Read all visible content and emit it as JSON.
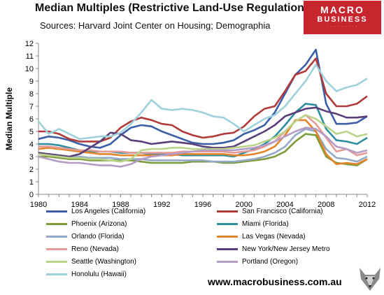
{
  "header": {
    "title": "Median Multiples (Restrictive Land-Use Regulation)",
    "subtitle": "Sources: Harvard Joint Center on Housing; Demographia"
  },
  "logo": {
    "line1": "MACRO",
    "line2": "BUSINESS",
    "line3": "· · · · · · · · ·"
  },
  "footer": {
    "url": "www.macrobusiness.com.au"
  },
  "chart_data": {
    "type": "line",
    "title": "Median Multiples (Restrictive Land-Use Regulation)",
    "subtitle": "Sources: Harvard Joint Center on Housing; Demographia",
    "xlabel": "",
    "ylabel": "Median Multiple",
    "xlim": [
      1980,
      2012
    ],
    "ylim": [
      0,
      12
    ],
    "xticks": [
      1980,
      1984,
      1988,
      1992,
      1996,
      2000,
      2004,
      2008,
      2012
    ],
    "yticks": [
      0,
      1,
      2,
      3,
      4,
      5,
      6,
      7,
      8,
      9,
      10,
      11,
      12
    ],
    "grid": false,
    "legend_position": "bottom",
    "x": [
      1980,
      1981,
      1982,
      1983,
      1984,
      1985,
      1986,
      1987,
      1988,
      1989,
      1990,
      1991,
      1992,
      1993,
      1994,
      1995,
      1996,
      1997,
      1998,
      1999,
      2000,
      2001,
      2002,
      2003,
      2004,
      2005,
      2006,
      2007,
      2008,
      2009,
      2010,
      2011,
      2012
    ],
    "series": [
      {
        "name": "Los Angeles (California)",
        "color": "#3b5ea6",
        "values": [
          4.4,
          4.6,
          4.5,
          4.3,
          4.0,
          3.8,
          3.7,
          4.0,
          4.7,
          5.3,
          5.5,
          5.4,
          5.0,
          4.7,
          4.4,
          4.1,
          4.0,
          4.0,
          4.1,
          4.3,
          4.8,
          5.1,
          5.5,
          6.5,
          8.0,
          9.5,
          10.3,
          11.5,
          7.2,
          5.6,
          5.6,
          5.7,
          6.2
        ]
      },
      {
        "name": "San Francisco (California)",
        "color": "#b03b3a",
        "values": [
          5.0,
          5.0,
          4.8,
          4.4,
          4.2,
          4.2,
          4.2,
          4.5,
          5.3,
          5.8,
          6.1,
          5.9,
          5.6,
          5.5,
          5.0,
          4.7,
          4.5,
          4.6,
          4.8,
          4.9,
          5.4,
          6.2,
          6.8,
          7.0,
          8.2,
          9.5,
          9.8,
          10.8,
          8.0,
          7.0,
          7.0,
          7.2,
          7.8
        ]
      },
      {
        "name": "Phoenix (Arizona)",
        "color": "#7d9b3b",
        "values": [
          3.0,
          3.0,
          2.9,
          2.8,
          2.8,
          2.7,
          2.7,
          2.7,
          2.7,
          2.7,
          2.6,
          2.5,
          2.5,
          2.5,
          2.5,
          2.6,
          2.6,
          2.6,
          2.5,
          2.5,
          2.6,
          2.7,
          2.8,
          3.0,
          3.4,
          4.2,
          4.8,
          4.7,
          3.0,
          2.5,
          2.4,
          2.3,
          2.8
        ]
      },
      {
        "name": "Miami (Florida)",
        "color": "#2f8e9f",
        "values": [
          4.0,
          4.0,
          3.9,
          3.7,
          3.5,
          3.4,
          3.4,
          3.4,
          3.3,
          3.3,
          3.3,
          3.2,
          3.2,
          3.2,
          3.1,
          3.1,
          3.1,
          3.1,
          3.1,
          3.0,
          3.3,
          3.6,
          4.0,
          4.6,
          5.5,
          6.5,
          7.2,
          7.1,
          5.2,
          4.3,
          4.2,
          4.0,
          4.5
        ]
      },
      {
        "name": "Orlando (Florida)",
        "color": "#94a9c8",
        "values": [
          3.2,
          3.2,
          3.1,
          3.0,
          3.0,
          2.9,
          2.9,
          2.9,
          2.8,
          2.8,
          2.8,
          2.7,
          2.7,
          2.7,
          2.7,
          2.7,
          2.7,
          2.6,
          2.6,
          2.6,
          2.7,
          2.8,
          3.0,
          3.3,
          3.8,
          4.7,
          5.2,
          5.0,
          3.6,
          2.9,
          2.8,
          2.6,
          3.0
        ]
      },
      {
        "name": "Las Vegas (Nevada)",
        "color": "#e2852d",
        "values": [
          3.6,
          3.7,
          3.6,
          3.5,
          3.4,
          3.3,
          3.2,
          3.2,
          3.1,
          3.1,
          3.1,
          3.1,
          3.1,
          3.1,
          3.2,
          3.2,
          3.2,
          3.2,
          3.2,
          3.1,
          3.1,
          3.2,
          3.4,
          3.8,
          4.7,
          5.9,
          5.9,
          5.0,
          3.2,
          2.4,
          2.5,
          2.4,
          2.8
        ]
      },
      {
        "name": "Reno (Nevada)",
        "color": "#e49a96",
        "values": [
          3.8,
          3.8,
          3.7,
          3.6,
          3.5,
          3.5,
          3.4,
          3.4,
          3.4,
          3.3,
          3.3,
          3.3,
          3.3,
          3.3,
          3.4,
          3.4,
          3.4,
          3.4,
          3.4,
          3.3,
          3.4,
          3.5,
          3.8,
          4.2,
          5.0,
          5.8,
          6.3,
          5.6,
          4.5,
          3.4,
          3.6,
          3.1,
          3.3
        ]
      },
      {
        "name": "New York/New Jersey Metro",
        "color": "#5a3f7a",
        "values": [
          3.3,
          3.2,
          3.1,
          3.0,
          3.2,
          3.7,
          4.2,
          4.9,
          4.8,
          4.3,
          4.2,
          4.0,
          4.1,
          4.2,
          4.1,
          4.0,
          3.8,
          3.7,
          3.7,
          3.8,
          4.2,
          4.6,
          5.0,
          5.5,
          6.2,
          6.5,
          6.8,
          6.9,
          6.6,
          6.4,
          6.1,
          6.1,
          6.2
        ]
      },
      {
        "name": "Seattle (Washington)",
        "color": "#b9d38a",
        "values": [
          3.2,
          3.1,
          3.0,
          2.9,
          2.9,
          2.8,
          2.8,
          2.7,
          2.6,
          2.8,
          3.5,
          3.6,
          3.6,
          3.7,
          3.7,
          3.6,
          3.6,
          3.6,
          3.6,
          3.7,
          3.8,
          3.9,
          4.2,
          4.5,
          5.0,
          5.8,
          6.3,
          6.0,
          5.4,
          4.8,
          5.0,
          4.6,
          4.8
        ]
      },
      {
        "name": "Portland (Oregon)",
        "color": "#b49cc5",
        "values": [
          3.0,
          2.8,
          2.6,
          2.5,
          2.5,
          2.4,
          2.3,
          2.3,
          2.2,
          2.4,
          2.8,
          3.0,
          3.1,
          3.2,
          3.3,
          3.4,
          3.5,
          3.5,
          3.5,
          3.5,
          3.6,
          3.7,
          3.9,
          4.2,
          4.6,
          5.0,
          5.3,
          5.2,
          4.6,
          3.8,
          3.6,
          3.3,
          3.5
        ]
      },
      {
        "name": "Honolulu (Hawaii)",
        "color": "#9fd1db",
        "values": [
          5.8,
          4.8,
          5.2,
          4.8,
          4.4,
          4.5,
          4.6,
          4.6,
          4.9,
          5.6,
          6.5,
          7.5,
          6.8,
          6.7,
          6.8,
          6.7,
          6.5,
          6.2,
          6.1,
          5.6,
          5.0,
          5.5,
          6.0,
          6.3,
          7.0,
          8.0,
          9.0,
          10.3,
          9.0,
          8.2,
          8.5,
          8.7,
          9.2
        ]
      }
    ]
  }
}
